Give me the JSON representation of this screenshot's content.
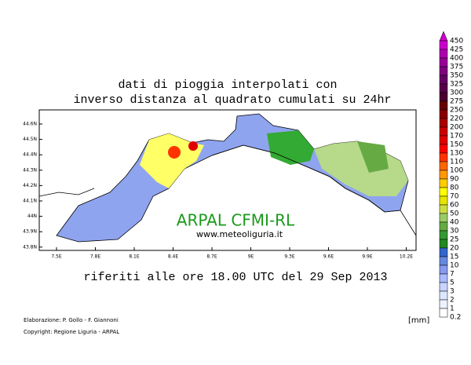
{
  "title": {
    "line1": "dati di pioggia interpolati con",
    "line2": "inverso distanza al quadrato cumulati su 24hr"
  },
  "map": {
    "lat_labels": [
      "44.6N",
      "44.5N",
      "44.4N",
      "44.3N",
      "44.2N",
      "44.1N",
      "44N",
      "43.9N",
      "43.8N"
    ],
    "lon_labels": [
      "7.5E",
      "7.8E",
      "8.1E",
      "8.4E",
      "8.7E",
      "9E",
      "9.3E",
      "9.6E",
      "9.9E",
      "10.2E"
    ],
    "watermark": "ARPAL CFMI-RL",
    "website": "www.meteoliguria.it"
  },
  "caption": "riferiti alle ore 18.00 UTC del 29 Sep 2013",
  "credits": {
    "author": "Elaborazione: P. Gollo - F. Giannoni",
    "copyright": "Copyright: Regione Liguria - ARPAL"
  },
  "colorbar": {
    "unit": "[mm]",
    "labels": [
      "450",
      "425",
      "400",
      "375",
      "350",
      "325",
      "300",
      "275",
      "250",
      "220",
      "200",
      "170",
      "150",
      "130",
      "110",
      "100",
      "90",
      "80",
      "70",
      "60",
      "50",
      "40",
      "30",
      "25",
      "20",
      "15",
      "10",
      "7",
      "5",
      "3",
      "2",
      "1",
      "0.2"
    ],
    "colors": [
      "#cc00cc",
      "#b000b0",
      "#990099",
      "#800080",
      "#660066",
      "#5a004a",
      "#4a0030",
      "#660000",
      "#880000",
      "#aa0000",
      "#cc0000",
      "#e00000",
      "#ff0000",
      "#ff3300",
      "#ff6600",
      "#ff9900",
      "#ffcc00",
      "#ffff00",
      "#e6e600",
      "#ccdd44",
      "#99cc66",
      "#66aa44",
      "#339933",
      "#228822",
      "#3366cc",
      "#6688dd",
      "#8899ee",
      "#aabbff",
      "#c8d4ff",
      "#dde6ff",
      "#eef2ff",
      "#ffffff"
    ]
  }
}
